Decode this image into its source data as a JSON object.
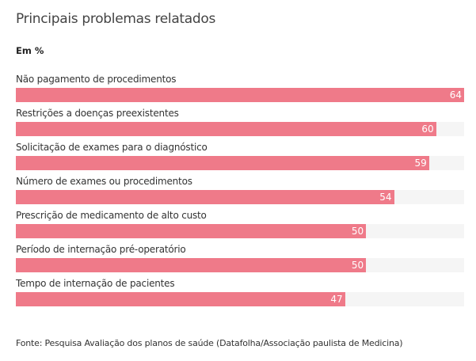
{
  "chart_data": {
    "type": "bar",
    "orientation": "horizontal",
    "title": "Principais problemas relatados",
    "subtitle": "Em %",
    "categories": [
      "Não pagamento de procedimentos",
      "Restrições a doenças preexistentes",
      "Solicitação de exames para o diagnóstico",
      "Número de exames ou procedimentos",
      "Prescrição de medicamento de alto custo",
      "Período de internação pré-operatório",
      "Tempo de internação de pacientes"
    ],
    "values": [
      64,
      60,
      59,
      54,
      50,
      50,
      47
    ],
    "xlim": [
      0,
      64
    ],
    "grid": false,
    "source": "Fonte: Pesquisa Avaliação dos planos de saúde (Datafolha/Associação paulista de Medicina)",
    "colors": {
      "bar": "#ef7a89",
      "track": "#f5f5f5",
      "value_text": "#ffffff"
    }
  }
}
